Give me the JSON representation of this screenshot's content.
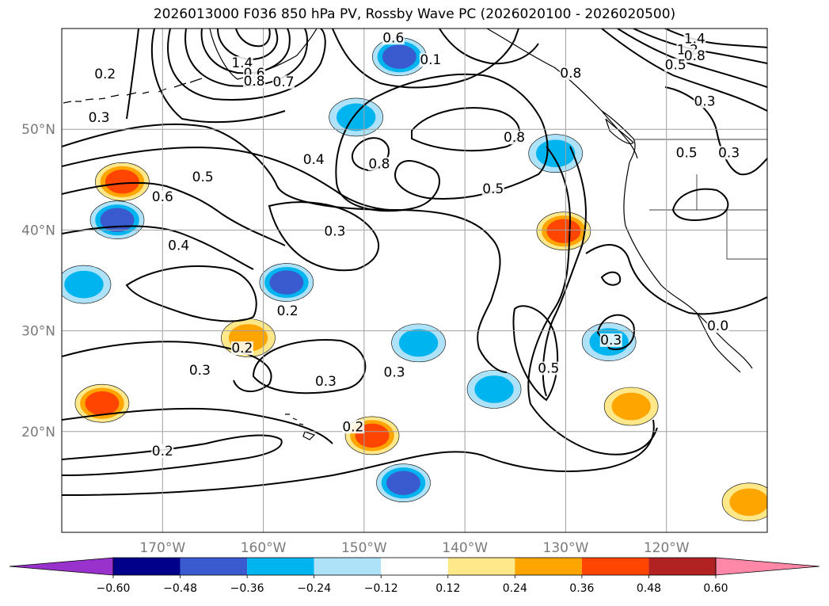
{
  "chart_data": {
    "type": "contour map",
    "title": "2026013000 F036 850 hPa PV, Rossby Wave PC (2026020100 - 2026020500)",
    "lon_range": [
      -180,
      -110
    ],
    "lat_range": [
      10,
      60
    ],
    "x_ticks": [
      {
        "value": -170,
        "label": "170°W"
      },
      {
        "value": -160,
        "label": "160°W"
      },
      {
        "value": -150,
        "label": "150°W"
      },
      {
        "value": -140,
        "label": "140°W"
      },
      {
        "value": -130,
        "label": "130°W"
      },
      {
        "value": -120,
        "label": "120°W"
      }
    ],
    "y_ticks": [
      {
        "value": 20,
        "label": "20°N"
      },
      {
        "value": 30,
        "label": "30°N"
      },
      {
        "value": 40,
        "label": "40°N"
      },
      {
        "value": 50,
        "label": "50°N"
      }
    ],
    "grid": true,
    "colorbar": {
      "orientation": "horizontal",
      "extend": "both",
      "levels": [
        -0.6,
        -0.48,
        -0.36,
        -0.24,
        -0.12,
        0.12,
        0.24,
        0.36,
        0.48,
        0.6
      ],
      "tick_labels": [
        "−0.60",
        "−0.48",
        "−0.36",
        "−0.24",
        "−0.12",
        "0.12",
        "0.24",
        "0.36",
        "0.48",
        "0.60"
      ],
      "colors": [
        "#9932CC",
        "#00008B",
        "#3A5BD0",
        "#00B4F0",
        "#AEE2F8",
        "#FFFFFF",
        "#FFE88A",
        "#FFA500",
        "#FF4500",
        "#B22222",
        "#FF87A8"
      ]
    },
    "contour_labels": [
      {
        "text": "0.2",
        "lon": -175.7,
        "lat": 55.2
      },
      {
        "text": "0.3",
        "lon": -176.3,
        "lat": 50.9
      },
      {
        "text": "1.4",
        "lon": -162.1,
        "lat": 56.3
      },
      {
        "text": "0.6",
        "lon": -160.9,
        "lat": 55.3
      },
      {
        "text": "0.8",
        "lon": -160.9,
        "lat": 54.5
      },
      {
        "text": "0.7",
        "lon": -158.0,
        "lat": 54.4
      },
      {
        "text": "0.6",
        "lon": -147.1,
        "lat": 58.8
      },
      {
        "text": "0.1",
        "lon": -143.4,
        "lat": 56.6
      },
      {
        "text": "0.8",
        "lon": -135.1,
        "lat": 48.9
      },
      {
        "text": "0.8",
        "lon": -148.5,
        "lat": 46.3
      },
      {
        "text": "0.5",
        "lon": -137.2,
        "lat": 43.8
      },
      {
        "text": "0.4",
        "lon": -155.0,
        "lat": 46.7
      },
      {
        "text": "0.5",
        "lon": -166.0,
        "lat": 45.0
      },
      {
        "text": "0.6",
        "lon": -170.0,
        "lat": 43.0
      },
      {
        "text": "0.3",
        "lon": -152.9,
        "lat": 39.6
      },
      {
        "text": "0.4",
        "lon": -168.4,
        "lat": 38.2
      },
      {
        "text": "0.2",
        "lon": -157.6,
        "lat": 31.7
      },
      {
        "text": "0.2",
        "lon": -162.1,
        "lat": 28.0
      },
      {
        "text": "0.3",
        "lon": -166.3,
        "lat": 25.8
      },
      {
        "text": "0.3",
        "lon": -153.8,
        "lat": 24.7
      },
      {
        "text": "0.3",
        "lon": -147.0,
        "lat": 25.6
      },
      {
        "text": "0.2",
        "lon": -151.1,
        "lat": 20.2
      },
      {
        "text": "0.2",
        "lon": -170.0,
        "lat": 17.8
      },
      {
        "text": "0.5",
        "lon": -131.7,
        "lat": 26.0
      },
      {
        "text": "0.3",
        "lon": -125.5,
        "lat": 28.8
      },
      {
        "text": "0.8",
        "lon": -129.5,
        "lat": 55.3
      },
      {
        "text": "1.4",
        "lon": -117.2,
        "lat": 58.7
      },
      {
        "text": "1.2",
        "lon": -117.9,
        "lat": 57.6
      },
      {
        "text": "0.8",
        "lon": -117.2,
        "lat": 57.0
      },
      {
        "text": "0.5",
        "lon": -119.1,
        "lat": 56.1
      },
      {
        "text": "0.3",
        "lon": -116.2,
        "lat": 52.5
      },
      {
        "text": "0.5",
        "lon": -118.0,
        "lat": 47.4
      },
      {
        "text": "0.3",
        "lon": -113.8,
        "lat": 47.4
      },
      {
        "text": "0.0",
        "lon": -114.9,
        "lat": 30.2
      }
    ],
    "filled_anomalies": [
      {
        "lon": -146.5,
        "lat": 57.2,
        "value": -0.45
      },
      {
        "lon": -150.8,
        "lat": 51.2,
        "value": -0.3
      },
      {
        "lon": -174.5,
        "lat": 41.0,
        "value": -0.45
      },
      {
        "lon": -177.8,
        "lat": 34.6,
        "value": -0.3
      },
      {
        "lon": -174.0,
        "lat": 44.8,
        "value": 0.45
      },
      {
        "lon": -157.7,
        "lat": 34.8,
        "value": -0.45
      },
      {
        "lon": -130.2,
        "lat": 39.9,
        "value": 0.4
      },
      {
        "lon": -131.0,
        "lat": 47.6,
        "value": -0.25
      },
      {
        "lon": -161.5,
        "lat": 29.3,
        "value": 0.3
      },
      {
        "lon": -144.6,
        "lat": 28.8,
        "value": -0.3
      },
      {
        "lon": -137.1,
        "lat": 24.2,
        "value": -0.3
      },
      {
        "lon": -125.7,
        "lat": 28.9,
        "value": -0.25
      },
      {
        "lon": -176.0,
        "lat": 22.8,
        "value": 0.4
      },
      {
        "lon": -149.2,
        "lat": 19.6,
        "value": 0.4
      },
      {
        "lon": -123.5,
        "lat": 22.5,
        "value": 0.3
      },
      {
        "lon": -146.1,
        "lat": 14.9,
        "value": -0.4
      },
      {
        "lon": -111.8,
        "lat": 13.0,
        "value": 0.35
      }
    ]
  }
}
